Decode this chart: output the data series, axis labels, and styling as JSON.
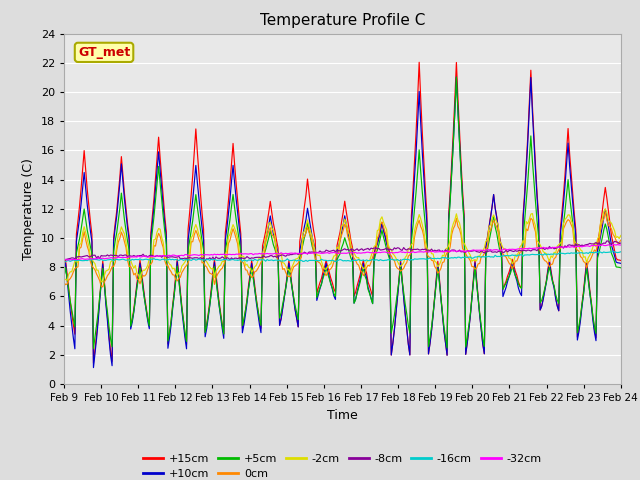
{
  "title": "Temperature Profile C",
  "xlabel": "Time",
  "ylabel": "Temperature (C)",
  "ylim": [
    0,
    24
  ],
  "yticks": [
    0,
    2,
    4,
    6,
    8,
    10,
    12,
    14,
    16,
    18,
    20,
    22,
    24
  ],
  "xtick_labels": [
    "Feb 9",
    "Feb 10",
    "Feb 11",
    "Feb 12",
    "Feb 13",
    "Feb 14",
    "Feb 15",
    "Feb 16",
    "Feb 17",
    "Feb 18",
    "Feb 19",
    "Feb 20",
    "Feb 21",
    "Feb 22",
    "Feb 23",
    "Feb 24"
  ],
  "series": [
    {
      "label": "+15cm",
      "color": "#ff0000"
    },
    {
      "label": "+10cm",
      "color": "#0000cc"
    },
    {
      "label": "+5cm",
      "color": "#00bb00"
    },
    {
      "label": "0cm",
      "color": "#ff8800"
    },
    {
      "label": "-2cm",
      "color": "#dddd00"
    },
    {
      "label": "-8cm",
      "color": "#880099"
    },
    {
      "label": "-16cm",
      "color": "#00cccc"
    },
    {
      "label": "-32cm",
      "color": "#ff00ff"
    }
  ],
  "annotation_text": "GT_met",
  "annotation_color": "#cc0000",
  "annotation_bg": "#ffffaa",
  "annotation_border": "#aaaa00",
  "fig_bg": "#dddddd",
  "plot_bg": "#e8e8e8",
  "grid_color": "#ffffff",
  "title_fontsize": 11,
  "axis_label_fontsize": 9,
  "tick_fontsize": 8
}
